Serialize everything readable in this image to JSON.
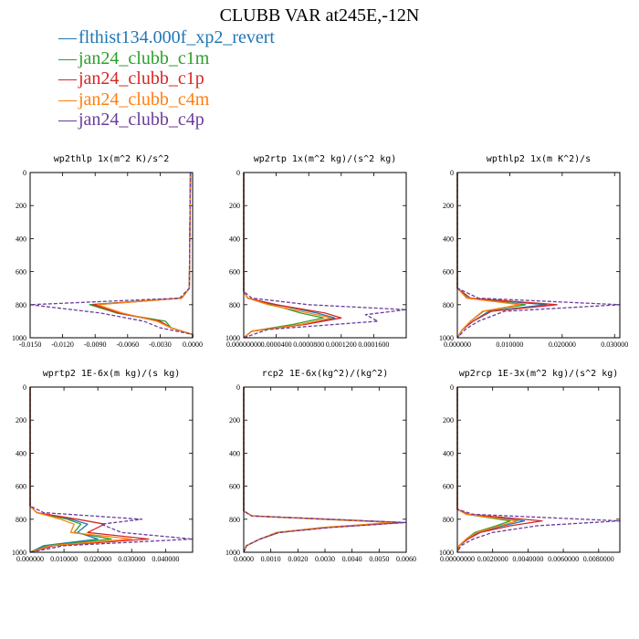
{
  "title": "CLUBB VAR at245E,-12N",
  "legend": [
    {
      "label": "flthist134.000f_xp2_revert",
      "color": "#1f77b4",
      "dashed": false
    },
    {
      "label": "jan24_clubb_c1m",
      "color": "#2ca02c",
      "dashed": false
    },
    {
      "label": "jan24_clubb_c1p",
      "color": "#d62728",
      "dashed": false
    },
    {
      "label": "jan24_clubb_c4m",
      "color": "#ff7f0e",
      "dashed": false
    },
    {
      "label": "jan24_clubb_c4p",
      "color": "#6a3d9a",
      "dashed": true
    }
  ],
  "chart_data": [
    {
      "type": "line",
      "title": "wp2thlp 1x(m^2 K)/s^2",
      "xlim": [
        -0.015,
        0.0
      ],
      "ylim": [
        1000,
        0
      ],
      "xticks": [
        -0.015,
        -0.012,
        -0.009,
        -0.006,
        -0.003,
        0.0
      ],
      "xticklabels": [
        "-0.0150",
        "-0.0120",
        "-0.0090",
        "-0.0060",
        "-0.0030",
        "0.0000"
      ],
      "yticks": [
        0,
        200,
        400,
        600,
        800,
        1000
      ],
      "series": [
        {
          "y": [
            0,
            700,
            760,
            800,
            850,
            900,
            940,
            980,
            1000
          ],
          "x": [
            -0.0002,
            -0.0003,
            -0.001,
            -0.009,
            -0.007,
            -0.003,
            -0.002,
            0.0,
            0.0
          ]
        },
        {
          "y": [
            0,
            700,
            760,
            800,
            850,
            900,
            940,
            980,
            1000
          ],
          "x": [
            -0.0002,
            -0.0003,
            -0.001,
            -0.0095,
            -0.007,
            -0.0025,
            -0.002,
            0.0,
            0.0
          ]
        },
        {
          "y": [
            0,
            700,
            760,
            800,
            850,
            900,
            940,
            980,
            1000
          ],
          "x": [
            -0.0002,
            -0.0003,
            -0.001,
            -0.0092,
            -0.0068,
            -0.003,
            -0.002,
            0.0,
            0.0
          ]
        },
        {
          "y": [
            0,
            700,
            760,
            800,
            850,
            900,
            940,
            980,
            1000
          ],
          "x": [
            -0.0002,
            -0.0003,
            -0.001,
            -0.0088,
            -0.0065,
            -0.0033,
            -0.002,
            0.0,
            0.0
          ]
        },
        {
          "y": [
            0,
            700,
            760,
            800,
            850,
            900,
            940,
            980,
            1000
          ],
          "x": [
            -0.0002,
            -0.0003,
            -0.0012,
            -0.015,
            -0.0085,
            -0.0045,
            -0.003,
            0.0,
            0.0
          ]
        }
      ]
    },
    {
      "type": "line",
      "title": "wp2rtp 1x(m^2 kg)/(s^2 kg)",
      "xlim": [
        0.0,
        0.0002
      ],
      "ylim": [
        1000,
        0
      ],
      "xticks": [
        0.0,
        4e-05,
        8e-05,
        0.00012,
        0.00016
      ],
      "xticklabels": [
        "0.00000000",
        "0.0000400",
        "0.0000800",
        "0.0001200",
        "0.0001600"
      ],
      "yticks": [
        0,
        200,
        400,
        600,
        800,
        1000
      ],
      "series": [
        {
          "y": [
            0,
            720,
            760,
            800,
            850,
            880,
            920,
            960,
            1000
          ],
          "x": [
            0.0,
            0.0,
            5e-06,
            4e-05,
            9e-05,
            0.000112,
            7e-05,
            1e-05,
            0.0
          ]
        },
        {
          "y": [
            0,
            720,
            760,
            800,
            850,
            880,
            920,
            960,
            1000
          ],
          "x": [
            0.0,
            0.0,
            5e-06,
            3.5e-05,
            7e-05,
            9.8e-05,
            6e-05,
            1e-05,
            0.0
          ]
        },
        {
          "y": [
            0,
            720,
            760,
            800,
            850,
            880,
            920,
            960,
            1000
          ],
          "x": [
            0.0,
            0.0,
            5e-06,
            4e-05,
            0.0001,
            0.00012,
            7.5e-05,
            1e-05,
            0.0
          ]
        },
        {
          "y": [
            0,
            720,
            760,
            800,
            850,
            880,
            920,
            960,
            1000
          ],
          "x": [
            0.0,
            0.0,
            5e-06,
            3e-05,
            8e-05,
            0.000108,
            7e-05,
            1e-05,
            0.0
          ]
        },
        {
          "y": [
            0,
            720,
            760,
            800,
            830,
            860,
            900,
            950,
            1000
          ],
          "x": [
            0.0,
            0.0,
            1e-05,
            8e-05,
            0.0002,
            0.00015,
            0.000165,
            3e-05,
            0.0
          ]
        }
      ]
    },
    {
      "type": "line",
      "title": "wpthlp2 1x(m K^2)/s",
      "xlim": [
        0.0,
        0.031
      ],
      "ylim": [
        1000,
        0
      ],
      "xticks": [
        0.0,
        0.01,
        0.02,
        0.03
      ],
      "xticklabels": [
        "0.000000",
        "0.010000",
        "0.020000",
        "0.030000"
      ],
      "yticks": [
        0,
        200,
        400,
        600,
        800,
        1000
      ],
      "series": [
        {
          "y": [
            0,
            700,
            760,
            800,
            840,
            900,
            950,
            1000
          ],
          "x": [
            0.0,
            0.0,
            0.002,
            0.017,
            0.006,
            0.003,
            0.001,
            0.0
          ]
        },
        {
          "y": [
            0,
            700,
            760,
            800,
            840,
            900,
            950,
            1000
          ],
          "x": [
            0.0,
            0.0,
            0.002,
            0.013,
            0.005,
            0.0025,
            0.001,
            0.0
          ]
        },
        {
          "y": [
            0,
            700,
            760,
            800,
            840,
            900,
            950,
            1000
          ],
          "x": [
            0.0,
            0.0,
            0.0025,
            0.019,
            0.0065,
            0.003,
            0.001,
            0.0
          ]
        },
        {
          "y": [
            0,
            700,
            760,
            800,
            840,
            900,
            950,
            1000
          ],
          "x": [
            0.0,
            0.0,
            0.0018,
            0.012,
            0.0048,
            0.0025,
            0.001,
            0.0
          ]
        },
        {
          "y": [
            0,
            700,
            760,
            800,
            840,
            900,
            950,
            1000
          ],
          "x": [
            0.0,
            0.0,
            0.004,
            0.031,
            0.009,
            0.004,
            0.0015,
            0.0
          ]
        }
      ]
    },
    {
      "type": "line",
      "title": "wprtp2 1E-6x(m kg)/(s kg)",
      "xlim": [
        0.0,
        0.048
      ],
      "ylim": [
        1000,
        0
      ],
      "xticks": [
        0.0,
        0.01,
        0.02,
        0.03,
        0.04
      ],
      "xticklabels": [
        "0.000000",
        "0.010000",
        "0.020000",
        "0.030000",
        "0.040000"
      ],
      "yticks": [
        0,
        200,
        400,
        600,
        800,
        1000
      ],
      "series": [
        {
          "y": [
            0,
            720,
            760,
            800,
            830,
            880,
            920,
            960,
            1000
          ],
          "x": [
            0.0,
            0.0,
            0.002,
            0.012,
            0.017,
            0.014,
            0.02,
            0.004,
            0.0
          ]
        },
        {
          "y": [
            0,
            720,
            760,
            800,
            830,
            880,
            920,
            960,
            1000
          ],
          "x": [
            0.0,
            0.0,
            0.002,
            0.011,
            0.015,
            0.013,
            0.024,
            0.005,
            0.0
          ]
        },
        {
          "y": [
            0,
            720,
            760,
            800,
            830,
            880,
            920,
            960,
            1000
          ],
          "x": [
            0.0,
            0.0,
            0.002,
            0.014,
            0.022,
            0.017,
            0.035,
            0.007,
            0.0
          ]
        },
        {
          "y": [
            0,
            720,
            760,
            800,
            830,
            880,
            920,
            960,
            1000
          ],
          "x": [
            0.0,
            0.0,
            0.002,
            0.009,
            0.013,
            0.012,
            0.03,
            0.006,
            0.0
          ]
        },
        {
          "y": [
            0,
            720,
            760,
            800,
            830,
            880,
            920,
            960,
            1000
          ],
          "x": [
            0.0,
            0.0,
            0.004,
            0.033,
            0.021,
            0.027,
            0.048,
            0.01,
            0.0
          ]
        }
      ]
    },
    {
      "type": "line",
      "title": "rcp2 1E-6x(kg^2)/(kg^2)",
      "xlim": [
        0.0,
        0.006
      ],
      "ylim": [
        1000,
        0
      ],
      "xticks": [
        0.0,
        0.001,
        0.002,
        0.003,
        0.004,
        0.005,
        0.006
      ],
      "xticklabels": [
        "0.0000",
        "0.0010",
        "0.0020",
        "0.0030",
        "0.0040",
        "0.0050",
        "0.0060"
      ],
      "yticks": [
        0,
        200,
        400,
        600,
        800,
        1000
      ],
      "series": [
        {
          "y": [
            0,
            750,
            780,
            820,
            850,
            880,
            920,
            960,
            1000
          ],
          "x": [
            0.0,
            0.0,
            0.0003,
            0.0058,
            0.003,
            0.0013,
            0.0006,
            0.0001,
            0.0
          ]
        },
        {
          "y": [
            0,
            750,
            780,
            820,
            850,
            880,
            920,
            960,
            1000
          ],
          "x": [
            0.0,
            0.0,
            0.0003,
            0.0056,
            0.0029,
            0.0013,
            0.0006,
            0.0001,
            0.0
          ]
        },
        {
          "y": [
            0,
            750,
            780,
            820,
            850,
            880,
            920,
            960,
            1000
          ],
          "x": [
            0.0,
            0.0,
            0.0003,
            0.0059,
            0.0031,
            0.0013,
            0.0006,
            0.0001,
            0.0
          ]
        },
        {
          "y": [
            0,
            750,
            780,
            820,
            850,
            880,
            920,
            960,
            1000
          ],
          "x": [
            0.0,
            0.0,
            0.0003,
            0.0055,
            0.0029,
            0.0012,
            0.0006,
            0.0001,
            0.0
          ]
        },
        {
          "y": [
            0,
            750,
            780,
            820,
            850,
            880,
            920,
            960,
            1000
          ],
          "x": [
            0.0,
            0.0,
            0.0003,
            0.006,
            0.0032,
            0.0013,
            0.0006,
            0.0001,
            0.0
          ]
        }
      ]
    },
    {
      "type": "line",
      "title": "wp2rcp 1E-3x(m^2 kg)/(s^2 kg)",
      "xlim": [
        0.0,
        0.0092
      ],
      "ylim": [
        1000,
        0
      ],
      "xticks": [
        0.0,
        0.002,
        0.004,
        0.006,
        0.008
      ],
      "xticklabels": [
        "0.00000000",
        "0.0020000",
        "0.0040000",
        "0.0060000",
        "0.0080000"
      ],
      "yticks": [
        0,
        200,
        400,
        600,
        800,
        1000
      ],
      "series": [
        {
          "y": [
            0,
            740,
            770,
            810,
            840,
            880,
            920,
            960,
            1000
          ],
          "x": [
            0.0,
            0.0,
            0.0006,
            0.0038,
            0.0026,
            0.0012,
            0.0006,
            0.0001,
            0.0
          ]
        },
        {
          "y": [
            0,
            740,
            770,
            810,
            840,
            880,
            920,
            960,
            1000
          ],
          "x": [
            0.0,
            0.0,
            0.0005,
            0.003,
            0.0022,
            0.001,
            0.0005,
            0.0001,
            0.0
          ]
        },
        {
          "y": [
            0,
            740,
            770,
            810,
            840,
            880,
            920,
            960,
            1000
          ],
          "x": [
            0.0,
            0.0,
            0.0006,
            0.0048,
            0.003,
            0.0013,
            0.0006,
            0.0001,
            0.0
          ]
        },
        {
          "y": [
            0,
            740,
            770,
            810,
            840,
            880,
            920,
            960,
            1000
          ],
          "x": [
            0.0,
            0.0,
            0.0005,
            0.0034,
            0.0024,
            0.0011,
            0.0005,
            0.0001,
            0.0
          ]
        },
        {
          "y": [
            0,
            740,
            770,
            810,
            840,
            880,
            920,
            960,
            1000
          ],
          "x": [
            0.0,
            0.0,
            0.0009,
            0.0092,
            0.0045,
            0.002,
            0.0009,
            0.0002,
            0.0
          ]
        }
      ]
    }
  ]
}
